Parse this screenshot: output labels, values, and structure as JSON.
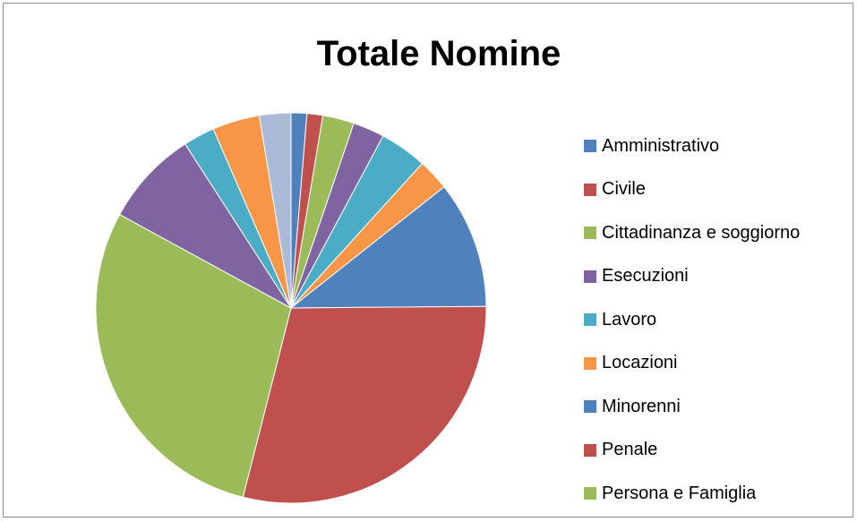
{
  "chart_data": {
    "type": "pie",
    "title": "Totale Nomine",
    "legend_position": "right",
    "slices": [
      {
        "label": "Amministrativo",
        "value": 1.3,
        "color": "#4f81bd"
      },
      {
        "label": "Civile",
        "value": 1.3,
        "color": "#c0504d"
      },
      {
        "label": "Cittadinanza e soggiorno",
        "value": 2.6,
        "color": "#9bbb59"
      },
      {
        "label": "Esecuzioni",
        "value": 2.6,
        "color": "#8064a2"
      },
      {
        "label": "Lavoro",
        "value": 3.9,
        "color": "#4bacc6"
      },
      {
        "label": "Locazioni",
        "value": 2.6,
        "color": "#f79646"
      },
      {
        "label": "Minorenni",
        "value": 10.5,
        "color": "#4f81bd"
      },
      {
        "label": "Penale",
        "value": 29.0,
        "color": "#c0504d"
      },
      {
        "label": "Persona e Famiglia",
        "value": 28.9,
        "color": "#9bbb59"
      },
      {
        "label": "",
        "value": 7.9,
        "color": "#8064a2"
      },
      {
        "label": "",
        "value": 2.6,
        "color": "#4bacc6"
      },
      {
        "label": "",
        "value": 3.9,
        "color": "#f79646"
      },
      {
        "label": "",
        "value": 2.6,
        "color": "#aabad7"
      }
    ]
  }
}
